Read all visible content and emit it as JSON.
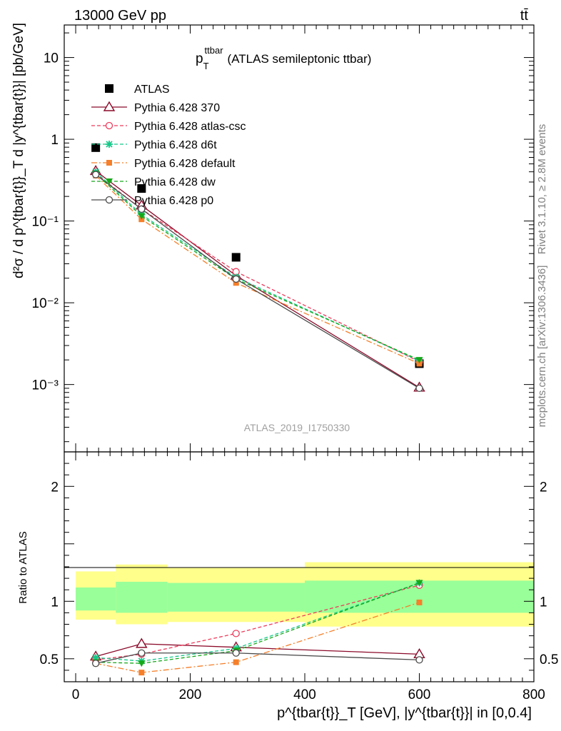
{
  "header": {
    "energy_label": "13000 GeV pp",
    "process_label": "tt̄",
    "title_main": "p",
    "title_sub": "T",
    "title_sup": "ttbar",
    "title_suffix": "(ATLAS semileptonic ttbar)",
    "analysis_id": "ATLAS_2019_I1750330",
    "side_rivet": "Rivet 3.1.10, ≥ 2.8M events",
    "side_mcplots": "mcplots.cern.ch [arXiv:1306.3436]"
  },
  "axes": {
    "main_ylabel": "d²σ / d p^{tbar{t}}_T d |y^{tbar{t}}| [pb/GeV]",
    "ratio_ylabel": "Ratio to ATLAS",
    "xlabel": "p^{tbar{t}}_T [GeV], |y^{tbar{t}}| in [0,0.4]"
  },
  "colors": {
    "atlas": "#000000",
    "p370": "#8b0a2a",
    "atlascsc": "#ee3a5a",
    "d6t": "#15c88a",
    "default": "#f57f2a",
    "dw": "#16a81a",
    "p0": "#4a4a4a",
    "band_outer": "#ffff8c",
    "band_inner": "#99ff99"
  },
  "chart_data": [
    {
      "type": "scatter",
      "panel": "main",
      "yscale": "log",
      "xlim": [
        -20,
        800
      ],
      "ylim": [
        0.00015,
        25
      ],
      "x_ticks": [
        0,
        200,
        400,
        600,
        800
      ],
      "y_tick_labels": [
        "10⁻³",
        "10⁻²",
        "10⁻¹",
        "1",
        "10"
      ],
      "x": [
        35,
        115,
        280,
        600
      ],
      "xerr": [
        [
          0,
          70
        ],
        [
          70,
          160
        ],
        [
          160,
          400
        ],
        [
          400,
          800
        ]
      ],
      "series": [
        {
          "name": "ATLAS",
          "key": "atlas",
          "marker": "square",
          "dash": "none",
          "values": [
            0.79,
            0.25,
            0.036,
            0.0018
          ]
        },
        {
          "name": "Pythia 6.428 370",
          "key": "p370",
          "marker": "triangle-open",
          "dash": "solid",
          "values": [
            0.41,
            0.155,
            0.0215,
            0.00092
          ]
        },
        {
          "name": "Pythia 6.428 atlas-csc",
          "key": "atlascsc",
          "marker": "circle-open",
          "dash": "dashed",
          "values": [
            0.38,
            0.14,
            0.024,
            0.0019
          ]
        },
        {
          "name": "Pythia 6.428 d6t",
          "key": "d6t",
          "marker": "star",
          "dash": "dashed",
          "values": [
            0.4,
            0.12,
            0.0205,
            0.00195
          ]
        },
        {
          "name": "Pythia 6.428 default",
          "key": "default",
          "marker": "square-filled",
          "dash": "dashdot",
          "values": [
            0.36,
            0.105,
            0.0175,
            0.0018
          ]
        },
        {
          "name": "Pythia 6.428 dw",
          "key": "dw",
          "marker": "triangle-down",
          "dash": "dashed",
          "values": [
            0.38,
            0.115,
            0.0195,
            0.002
          ]
        },
        {
          "name": "Pythia 6.428 p0",
          "key": "p0",
          "marker": "circle-open",
          "dash": "solid",
          "values": [
            0.37,
            0.14,
            0.0195,
            0.0009
          ]
        }
      ]
    },
    {
      "type": "line",
      "panel": "ratio",
      "ylim": [
        0.3,
        2.3
      ],
      "y_ticks": [
        0.5,
        1,
        2
      ],
      "x_ticks": [
        0,
        200,
        400,
        600,
        800
      ],
      "x": [
        35,
        115,
        280,
        600
      ],
      "bands": {
        "edges": [
          0,
          70,
          160,
          400,
          800
        ],
        "outer": [
          [
            0.84,
            1.26
          ],
          [
            0.8,
            1.32
          ],
          [
            0.82,
            1.29
          ],
          [
            0.78,
            1.34
          ]
        ],
        "inner": [
          [
            0.92,
            1.12
          ],
          [
            0.9,
            1.17
          ],
          [
            0.91,
            1.16
          ],
          [
            0.9,
            1.18
          ]
        ]
      },
      "series": [
        {
          "name": "Pythia 6.428 370",
          "key": "p370",
          "marker": "triangle-open",
          "dash": "solid",
          "values": [
            0.52,
            0.63,
            0.6,
            0.54
          ]
        },
        {
          "name": "Pythia 6.428 atlas-csc",
          "key": "atlascsc",
          "marker": "circle-open",
          "dash": "dashed",
          "values": [
            0.49,
            0.54,
            0.72,
            1.14
          ]
        },
        {
          "name": "Pythia 6.428 d6t",
          "key": "d6t",
          "marker": "star",
          "dash": "dashed",
          "values": [
            0.51,
            0.48,
            0.59,
            1.16
          ]
        },
        {
          "name": "Pythia 6.428 default",
          "key": "default",
          "marker": "square-filled",
          "dash": "dashdot",
          "values": [
            0.46,
            0.38,
            0.47,
            0.99
          ]
        },
        {
          "name": "Pythia 6.428 dw",
          "key": "dw",
          "marker": "triangle-down",
          "dash": "dashed",
          "values": [
            0.47,
            0.46,
            0.57,
            1.16
          ]
        },
        {
          "name": "Pythia 6.428 p0",
          "key": "p0",
          "marker": "circle-open",
          "dash": "solid",
          "values": [
            0.46,
            0.55,
            0.55,
            0.49
          ]
        }
      ]
    }
  ]
}
